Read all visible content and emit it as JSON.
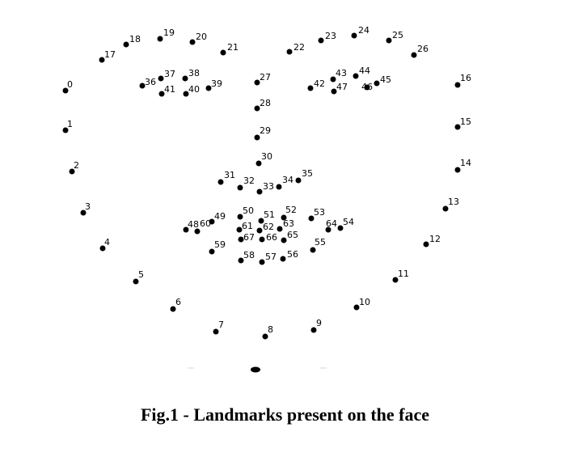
{
  "figure": {
    "caption": "Fig.1 - Landmarks present on the face",
    "landmark_labels": [
      "0",
      "1",
      "2",
      "3",
      "4",
      "5",
      "6",
      "7",
      "8",
      "9",
      "10",
      "11",
      "12",
      "13",
      "14",
      "15",
      "16",
      "17",
      "18",
      "19",
      "20",
      "21",
      "22",
      "23",
      "24",
      "25",
      "26",
      "27",
      "28",
      "29",
      "30",
      "31",
      "32",
      "33",
      "34",
      "35",
      "36",
      "37",
      "38",
      "39",
      "40",
      "41",
      "42",
      "43",
      "44",
      "45",
      "46",
      "47",
      "48",
      "49",
      "50",
      "51",
      "52",
      "53",
      "54",
      "55",
      "56",
      "57",
      "58",
      "59",
      "60",
      "61",
      "62",
      "63",
      "64",
      "65",
      "66",
      "67"
    ],
    "dot_color": "#000000",
    "background_color": "#ffffff"
  }
}
